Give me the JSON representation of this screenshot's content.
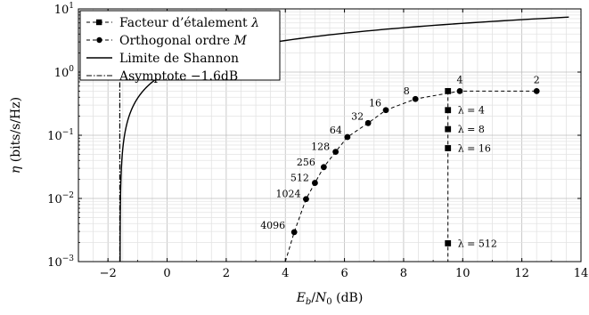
{
  "chart_data": {
    "type": "scatter",
    "xlabel": "E_b/N_0 (dB)",
    "ylabel": "η (bits/s/Hz)",
    "xlim": [
      -3,
      14
    ],
    "ylim": [
      0.001,
      10
    ],
    "yscale": "log",
    "grid": true,
    "legend_placement": "top-left",
    "x_ticks": [
      "−2",
      "0",
      "2",
      "4",
      "6",
      "8",
      "10",
      "12",
      "14"
    ],
    "y_ticks": [
      {
        "base": "10",
        "exp": "1",
        "value": 10
      },
      {
        "base": "10",
        "exp": "0",
        "value": 1
      },
      {
        "base": "10",
        "exp": "−1",
        "value": 0.1
      },
      {
        "base": "10",
        "exp": "−2",
        "value": 0.01
      },
      {
        "base": "10",
        "exp": "−3",
        "value": 0.001
      }
    ],
    "series": [
      {
        "name": "Facteur d’étalement λ",
        "legend_text": "Facteur d’étalement ",
        "legend_symbol": "λ",
        "marker": "square",
        "line": "dashed",
        "points": [
          {
            "x": 9.5,
            "y": 0.5
          },
          {
            "x": 9.5,
            "y": 0.25,
            "label": "λ = 4"
          },
          {
            "x": 9.5,
            "y": 0.125,
            "label": "λ = 8"
          },
          {
            "x": 9.5,
            "y": 0.0625,
            "label": "λ = 16"
          },
          {
            "x": 9.5,
            "y": 0.00195,
            "label": "λ = 512"
          }
        ]
      },
      {
        "name": "Orthogonal ordre M",
        "legend_text": "Orthogonal ordre ",
        "legend_symbol": "M",
        "marker": "circle",
        "line": "dashed",
        "points": [
          {
            "x": 12.5,
            "y": 0.5,
            "label": "2"
          },
          {
            "x": 9.9,
            "y": 0.5,
            "label": "4"
          },
          {
            "x": 8.4,
            "y": 0.375,
            "label": "8"
          },
          {
            "x": 7.4,
            "y": 0.25,
            "label": "16"
          },
          {
            "x": 6.8,
            "y": 0.156,
            "label": "32"
          },
          {
            "x": 6.1,
            "y": 0.0938,
            "label": "64"
          },
          {
            "x": 5.7,
            "y": 0.0547,
            "label": "128"
          },
          {
            "x": 5.3,
            "y": 0.0313,
            "label": "256"
          },
          {
            "x": 5.0,
            "y": 0.0176,
            "label": "512"
          },
          {
            "x": 4.7,
            "y": 0.00977,
            "label": "1024"
          },
          {
            "x": 4.3,
            "y": 0.00293,
            "label": "4096"
          },
          {
            "x": 4.0,
            "y": 0.001
          }
        ]
      },
      {
        "name": "Limite de Shannon",
        "legend_text": "Limite de Shannon",
        "line": "solid",
        "function": "Eb/N0 = (2^η − 1)/η"
      },
      {
        "name": "Asymptote −1.6dB",
        "legend_text": "Asymptote −1.6dB",
        "line": "dashdot",
        "x": -1.6
      }
    ]
  }
}
